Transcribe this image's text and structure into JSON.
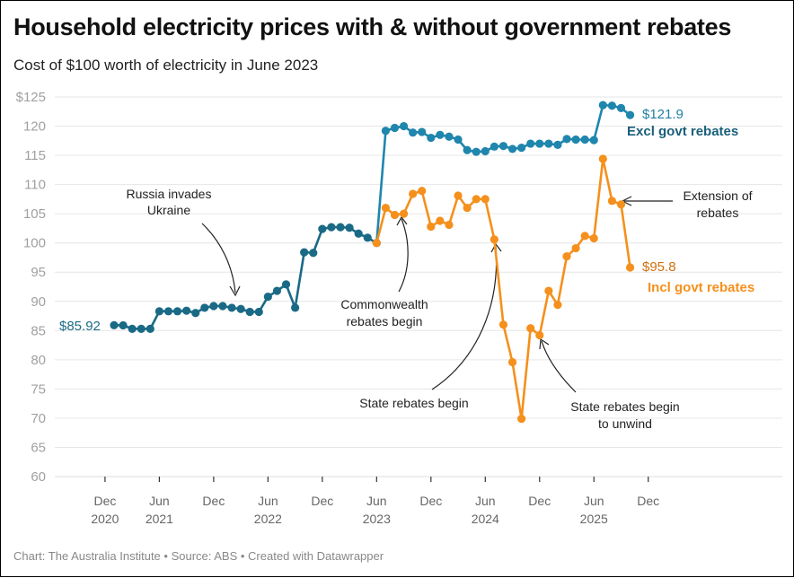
{
  "title": "Household electricity prices with & without government rebates",
  "subtitle": "Cost of $100 worth of electricity in June 2023",
  "footer": "Chart: The Australia Institute  • Source: ABS • Created with Datawrapper",
  "colors": {
    "excl": "#1a6a86",
    "excl_jump": "#1f86ad",
    "incl": "#f5901c",
    "grid": "#e6e6e6",
    "annotation": "#222222"
  },
  "chart_data": {
    "type": "line",
    "title": "Household electricity prices with & without government rebates",
    "subtitle": "Cost of $100 worth of electricity in June 2023",
    "xlabel": "",
    "ylabel": "",
    "ylim": [
      60,
      125
    ],
    "yticks": [
      60,
      65,
      70,
      75,
      80,
      85,
      90,
      95,
      100,
      105,
      110,
      115,
      120,
      125
    ],
    "ytick_labels": [
      "60",
      "65",
      "70",
      "75",
      "80",
      "85",
      "90",
      "95",
      "100",
      "105",
      "110",
      "115",
      "120",
      "$125"
    ],
    "grid": true,
    "x_start": "Jan 2021",
    "x_unit": "month",
    "xticks": [
      {
        "month_index": -1,
        "line1": "Dec",
        "line2": "2020"
      },
      {
        "month_index": 5,
        "line1": "Jun",
        "line2": "2021"
      },
      {
        "month_index": 11,
        "line1": "Dec",
        "line2": ""
      },
      {
        "month_index": 17,
        "line1": "Jun",
        "line2": "2022"
      },
      {
        "month_index": 23,
        "line1": "Dec",
        "line2": ""
      },
      {
        "month_index": 29,
        "line1": "Jun",
        "line2": "2023"
      },
      {
        "month_index": 35,
        "line1": "Dec",
        "line2": ""
      },
      {
        "month_index": 41,
        "line1": "Jun",
        "line2": "2024"
      },
      {
        "month_index": 47,
        "line1": "Dec",
        "line2": ""
      },
      {
        "month_index": 53,
        "line1": "Jun",
        "line2": "2025"
      },
      {
        "month_index": 59,
        "line1": "Dec",
        "line2": ""
      }
    ],
    "series": [
      {
        "name": "Excl govt rebates",
        "start_month_index": 0,
        "values": [
          85.92,
          85.9,
          85.3,
          85.3,
          85.3,
          88.3,
          88.3,
          88.3,
          88.4,
          88.0,
          88.9,
          89.2,
          89.2,
          88.9,
          88.7,
          88.2,
          88.2,
          90.8,
          91.8,
          92.9,
          88.9,
          98.4,
          98.3,
          102.4,
          102.7,
          102.7,
          102.6,
          101.6,
          100.9,
          100.0,
          119.2,
          119.7,
          120.0,
          118.9,
          119.0,
          118.0,
          118.5,
          118.2,
          117.7,
          115.9,
          115.6,
          115.7,
          116.5,
          116.6,
          116.1,
          116.3,
          117.0,
          117.0,
          117.0,
          116.8,
          117.8,
          117.7,
          117.7,
          117.6,
          123.6,
          123.5,
          123.1,
          121.9
        ],
        "end_label_value": "$121.9",
        "start_label_value": "$85.92"
      },
      {
        "name": "Incl govt rebates",
        "start_month_index": 29,
        "values": [
          100.0,
          106.0,
          104.8,
          105.0,
          108.4,
          108.9,
          102.8,
          103.8,
          103.1,
          108.1,
          106.0,
          107.5,
          107.5,
          100.6,
          86.0,
          79.6,
          69.9,
          85.4,
          84.2,
          91.8,
          89.4,
          97.7,
          99.1,
          101.2,
          100.8,
          114.4,
          107.2,
          106.6,
          95.8
        ],
        "end_label_value": "$95.8"
      }
    ],
    "legend": "inline-right",
    "annotations": [
      {
        "text": [
          "Russia invades",
          "Ukraine"
        ]
      },
      {
        "text": [
          "Commonwealth",
          "rebates begin"
        ]
      },
      {
        "text": [
          "State rebates begin"
        ]
      },
      {
        "text": [
          "State rebates begin",
          "to unwind"
        ]
      },
      {
        "text": [
          "Extension of",
          "rebates"
        ]
      }
    ]
  }
}
